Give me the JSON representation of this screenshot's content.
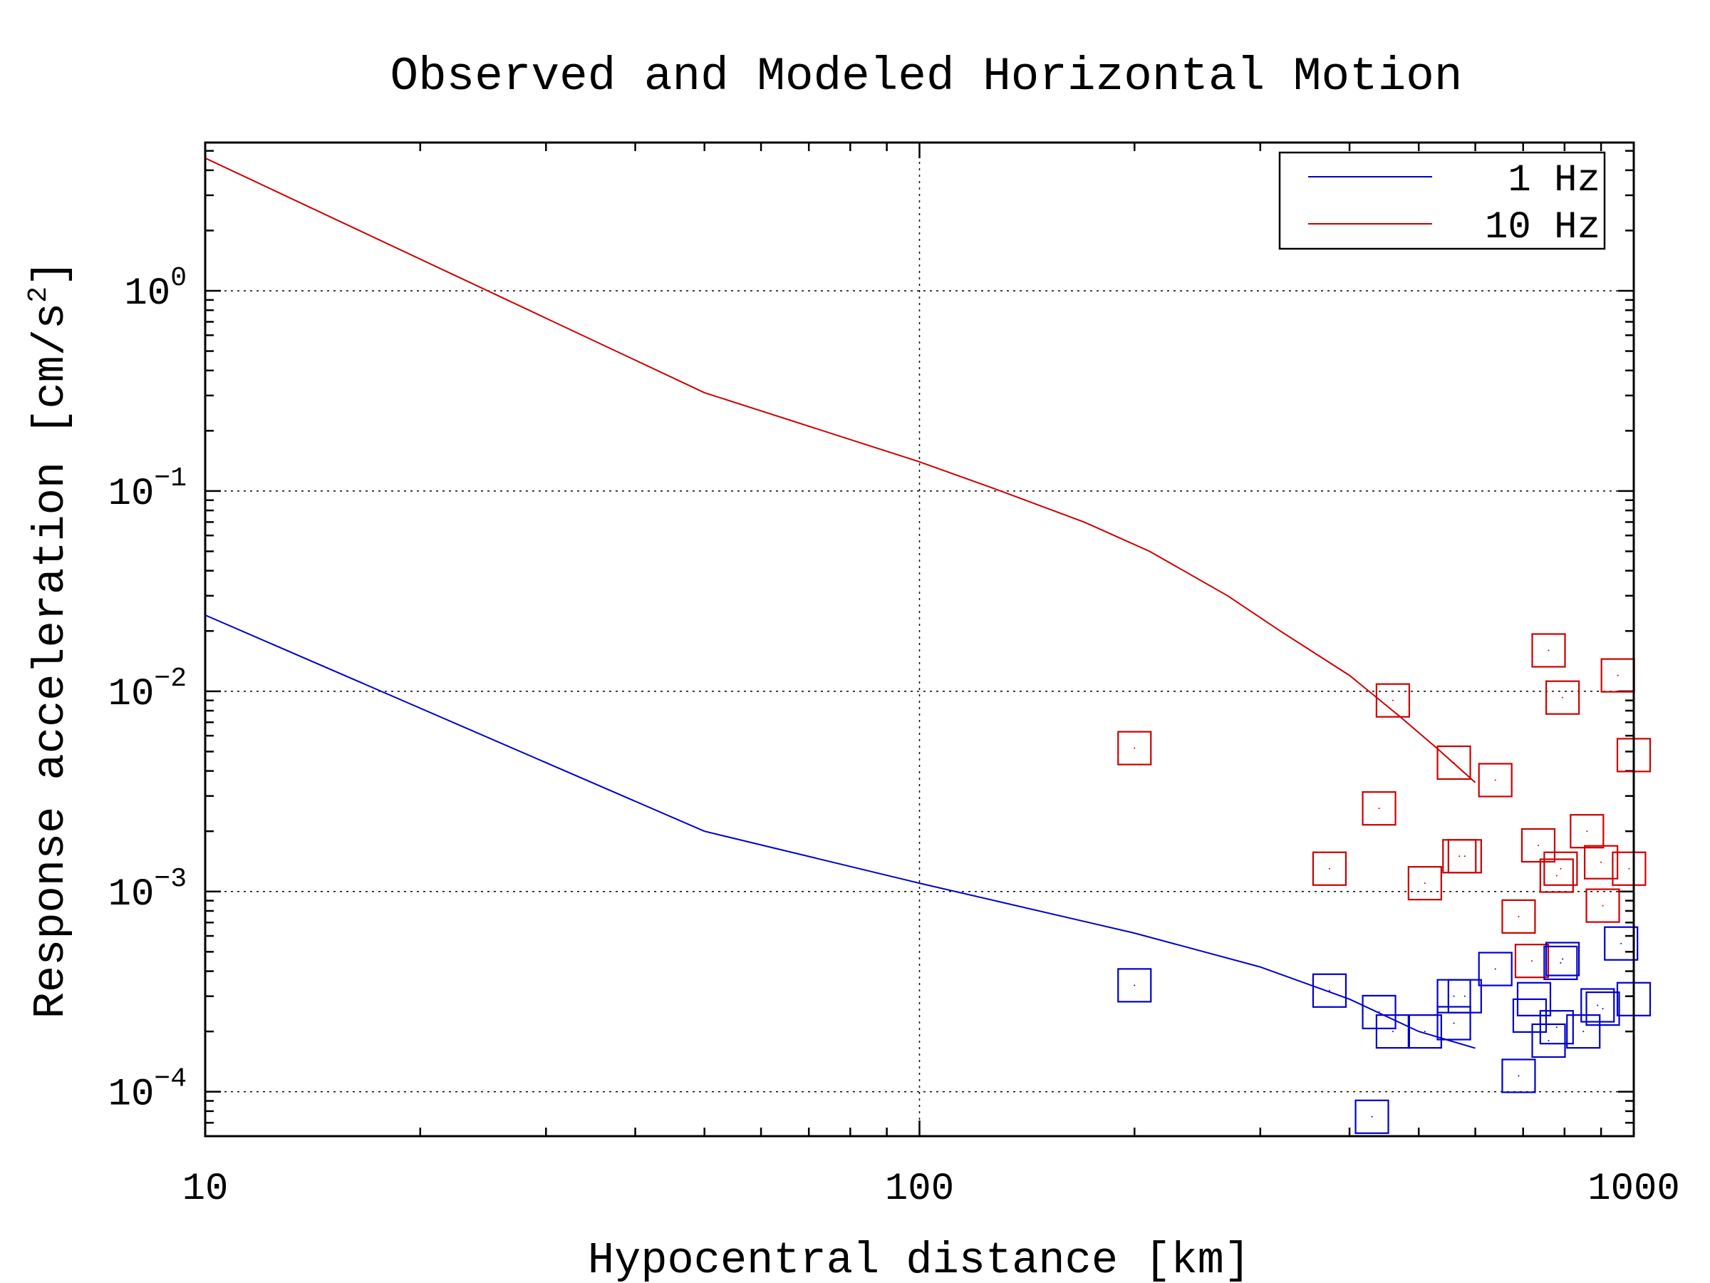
{
  "chart_data": {
    "type": "scatter",
    "title": "Observed and Modeled Horizontal Motion",
    "xlabel": "Hypocentral distance [km]",
    "ylabel": "Response acceleration [cm/s",
    "ylabel_sup": "2",
    "ylabel_end": "]",
    "x_scale": "log",
    "y_scale": "log",
    "xlim": [
      10,
      1000
    ],
    "ylim": [
      6e-05,
      5.5
    ],
    "grid": true,
    "legend_position": "top-right",
    "x_ticks": [
      {
        "value": 10,
        "label": "10"
      },
      {
        "value": 100,
        "label": "100"
      },
      {
        "value": 1000,
        "label": "1000"
      }
    ],
    "y_ticks": [
      {
        "value": 1,
        "base": "10",
        "exp": "0"
      },
      {
        "value": 0.1,
        "base": "10",
        "exp": "−1"
      },
      {
        "value": 0.01,
        "base": "10",
        "exp": "−2"
      },
      {
        "value": 0.001,
        "base": "10",
        "exp": "−3"
      },
      {
        "value": 0.0001,
        "base": "10",
        "exp": "−4"
      }
    ],
    "series": [
      {
        "name": "1 Hz",
        "kind": "line",
        "color": "#0000cc",
        "x": [
          10,
          50,
          100,
          200,
          300,
          400,
          500,
          600
        ],
        "y": [
          0.024,
          0.002,
          0.0011,
          0.00062,
          0.00042,
          0.00029,
          0.0002,
          0.000165
        ]
      },
      {
        "name": "10 Hz",
        "kind": "line",
        "color": "#cc0000",
        "x": [
          10,
          50,
          100,
          130,
          170,
          210,
          270,
          320,
          400,
          470,
          530,
          600
        ],
        "y": [
          4.6,
          0.31,
          0.14,
          0.1,
          0.07,
          0.05,
          0.03,
          0.02,
          0.012,
          0.0075,
          0.0052,
          0.0035
        ]
      },
      {
        "kind": "markers",
        "marker": "square",
        "color": "#cc0000",
        "x": [
          200,
          375,
          440,
          460,
          510,
          560,
          570,
          580,
          640,
          690,
          720,
          735,
          760,
          780,
          790,
          795,
          860,
          900,
          905,
          950,
          985,
          1000
        ],
        "y": [
          0.0052,
          0.0013,
          0.0026,
          0.009,
          0.0011,
          0.0044,
          0.0015,
          0.0015,
          0.0036,
          0.00075,
          0.00045,
          0.0017,
          0.016,
          0.0012,
          0.0013,
          0.0093,
          0.002,
          0.0014,
          0.00085,
          0.012,
          0.0013,
          0.0048
        ]
      },
      {
        "kind": "markers",
        "marker": "square",
        "color": "#0000cc",
        "x": [
          200,
          375,
          430,
          440,
          460,
          510,
          560,
          560,
          580,
          640,
          690,
          715,
          725,
          760,
          780,
          790,
          795,
          850,
          890,
          905,
          960,
          1000
        ],
        "y": [
          0.00034,
          0.00032,
          7.5e-05,
          0.00025,
          0.0002,
          0.0002,
          0.0003,
          0.00022,
          0.0003,
          0.00041,
          0.00012,
          0.00024,
          0.00029,
          0.00018,
          0.00021,
          0.00044,
          0.00046,
          0.0002,
          0.00027,
          0.00026,
          0.00055,
          0.00029
        ]
      }
    ]
  }
}
